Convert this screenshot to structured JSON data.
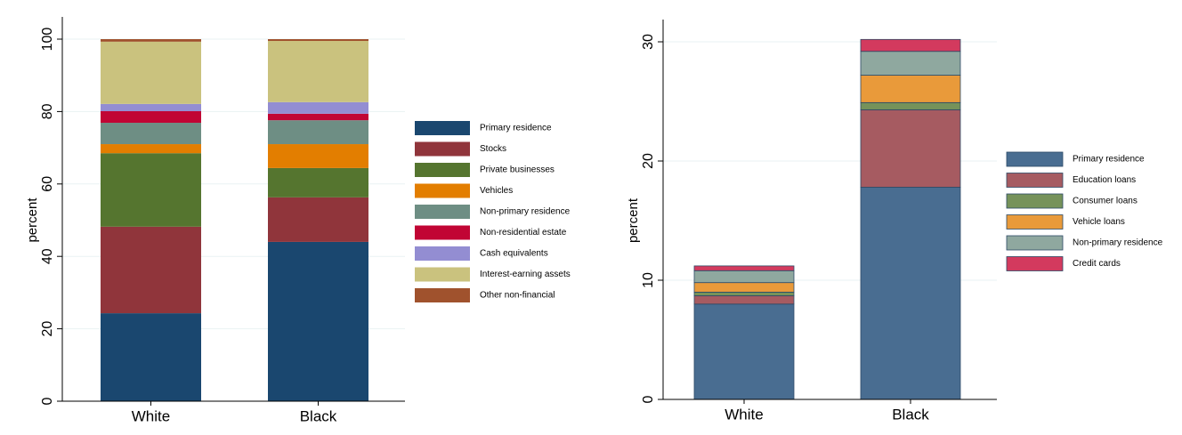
{
  "chart_data": [
    {
      "type": "bar",
      "stacked": true,
      "ylabel": "percent",
      "categories": [
        "White",
        "Black"
      ],
      "ylim": [
        0,
        100
      ],
      "yticks": [
        0,
        20,
        40,
        60,
        80,
        100
      ],
      "grid": true,
      "series": [
        {
          "name": "Primary residence",
          "color": "#1a476f",
          "values": [
            24.3,
            44.0
          ]
        },
        {
          "name": "Stocks",
          "color": "#90353b",
          "values": [
            23.9,
            12.3
          ]
        },
        {
          "name": "Private businesses",
          "color": "#55752f",
          "values": [
            20.3,
            8.1
          ]
        },
        {
          "name": "Vehicles",
          "color": "#e37e00",
          "values": [
            2.5,
            6.6
          ]
        },
        {
          "name": "Non-primary residence",
          "color": "#6e8e84",
          "values": [
            5.9,
            6.6
          ]
        },
        {
          "name": "Non-residential estate",
          "color": "#c10534",
          "values": [
            3.2,
            1.8
          ]
        },
        {
          "name": "Cash equivalents",
          "color": "#938dd2",
          "values": [
            2.0,
            3.2
          ]
        },
        {
          "name": "Interest-earning assets",
          "color": "#cac27e",
          "values": [
            17.2,
            16.9
          ]
        },
        {
          "name": "Other non-financial",
          "color": "#a0522d",
          "values": [
            0.7,
            0.5
          ]
        }
      ]
    },
    {
      "type": "bar",
      "stacked": true,
      "ylabel": "percent",
      "categories": [
        "White",
        "Black"
      ],
      "ylim": [
        0,
        31.5
      ],
      "yticks": [
        0,
        10,
        20,
        30
      ],
      "grid": true,
      "series": [
        {
          "name": "Primary residence",
          "color": "#496d91",
          "values": [
            8.0,
            17.8
          ]
        },
        {
          "name": "Education loans",
          "color": "#a65b61",
          "values": [
            0.7,
            6.5
          ]
        },
        {
          "name": "Consumer loans",
          "color": "#76925a",
          "values": [
            0.3,
            0.6
          ]
        },
        {
          "name": "Vehicle loans",
          "color": "#e99a3a",
          "values": [
            0.8,
            2.3
          ]
        },
        {
          "name": "Non-primary residence",
          "color": "#8fa89f",
          "values": [
            1.0,
            2.0
          ]
        },
        {
          "name": "Credit cards",
          "color": "#d33a5e",
          "values": [
            0.4,
            1.0
          ]
        }
      ]
    }
  ]
}
